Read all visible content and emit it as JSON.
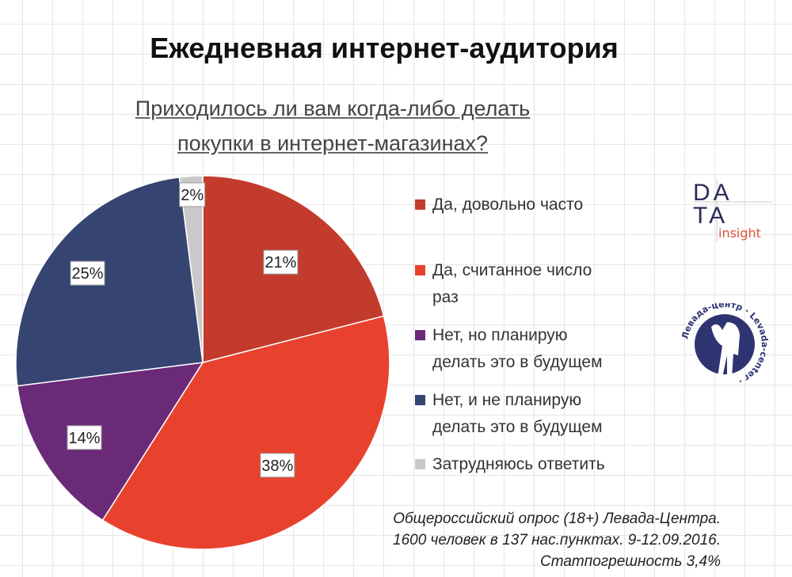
{
  "header": {
    "title": "Ежедневная интернет-аудитория",
    "subtitle_line1": "Приходилось ли вам когда-либо делать",
    "subtitle_line2": "покупки в интернет-магазинах?"
  },
  "chart_data": {
    "type": "pie",
    "title": "Приходилось ли вам когда-либо делать покупки в интернет-магазинах?",
    "categories": [
      "Да, довольно часто",
      "Да, считанное число раз",
      "Нет, но планирую делать это в будущем",
      "Нет, и не планирую делать это в будущем",
      "Затрудняюсь ответить"
    ],
    "values": [
      21,
      38,
      14,
      25,
      2
    ],
    "labels": [
      "21%",
      "38%",
      "14%",
      "25%",
      "2%"
    ],
    "colors": [
      "#c33b2d",
      "#e8422f",
      "#6b2a78",
      "#354470",
      "#c9c9c9"
    ],
    "legend": "right",
    "start": "top, clockwise"
  },
  "legend_lines": [
    [
      "Да, довольно часто",
      ""
    ],
    [
      "Да, считанное число",
      "раз"
    ],
    [
      "Нет, но планирую",
      "делать это в будущем"
    ],
    [
      "Нет, и не планирую",
      "делать это в будущем"
    ],
    [
      "Затрудняюсь ответить",
      ""
    ]
  ],
  "note": {
    "line1": "Общероссийский опрос (18+) Левада-Центра.",
    "line2": "1600 человек в 137 нас.пунктах. 9-12.09.2016.",
    "line3": "Статпогрешность 3,4%"
  },
  "logos": {
    "data_insight": {
      "top": "DA",
      "bottom": "TA",
      "word": "insight"
    },
    "levada": {
      "ru": "Левада-центр",
      "en": "Levada-center"
    }
  }
}
